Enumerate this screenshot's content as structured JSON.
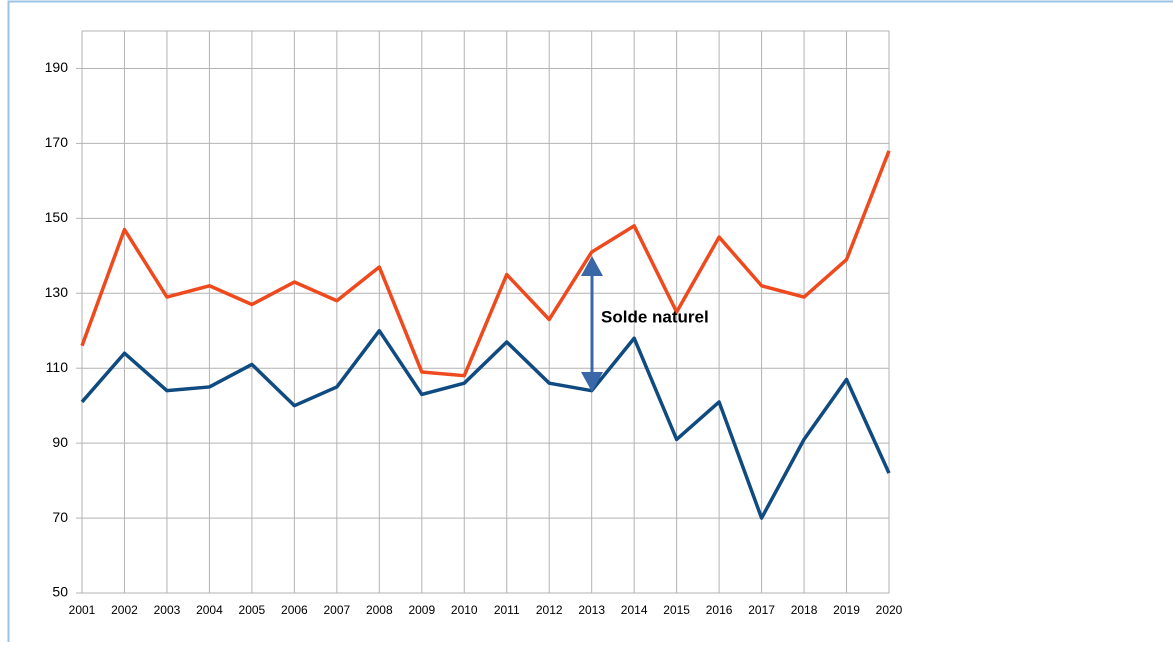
{
  "chart_data": {
    "type": "line",
    "annotation": "Solde naturel",
    "categories": [
      "2001",
      "2002",
      "2003",
      "2004",
      "2005",
      "2006",
      "2007",
      "2008",
      "2009",
      "2010",
      "2011",
      "2012",
      "2013",
      "2014",
      "2015",
      "2016",
      "2017",
      "2018",
      "2019",
      "2020"
    ],
    "series": [
      {
        "color": "#ee4a1d",
        "values": [
          116,
          147,
          129,
          132,
          127,
          133,
          128,
          137,
          109,
          108,
          135,
          123,
          141,
          148,
          125,
          145,
          132,
          129,
          139,
          168
        ]
      },
      {
        "color": "#0f4a80",
        "values": [
          101,
          114,
          104,
          105,
          111,
          100,
          105,
          120,
          103,
          106,
          117,
          106,
          104,
          118,
          91,
          101,
          70,
          91,
          107,
          82
        ]
      }
    ],
    "ylim": [
      50,
      200
    ],
    "yticks": [
      50,
      70,
      90,
      110,
      130,
      150,
      170,
      190
    ],
    "grid": true
  }
}
